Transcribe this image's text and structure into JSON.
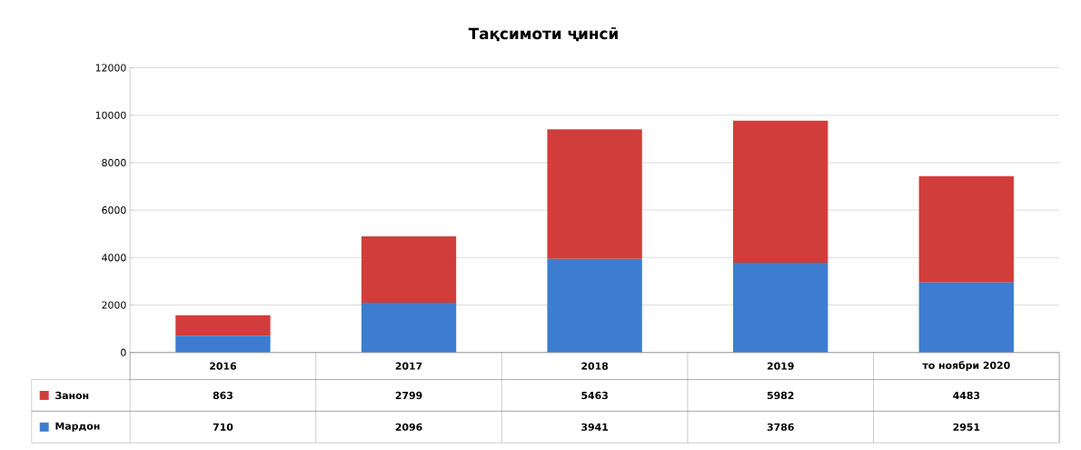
{
  "chart_data": {
    "type": "bar",
    "title": "Тақсимоти ҷинсӣ",
    "categories": [
      "2016",
      "2017",
      "2018",
      "2019",
      "то ноябри 2020"
    ],
    "stacked": true,
    "series": [
      {
        "name": "Мардон",
        "color": "#3c7dd0",
        "values": [
          710,
          2096,
          3941,
          3786,
          2951
        ]
      },
      {
        "name": "Занон",
        "color": "#d13d3a",
        "values": [
          863,
          2799,
          5463,
          5982,
          4483
        ]
      }
    ],
    "ylim": [
      0,
      12000
    ],
    "yticks": [
      0,
      2000,
      4000,
      6000,
      8000,
      10000,
      12000
    ],
    "grid": "y",
    "legend": "bottom",
    "data_labels": true
  }
}
